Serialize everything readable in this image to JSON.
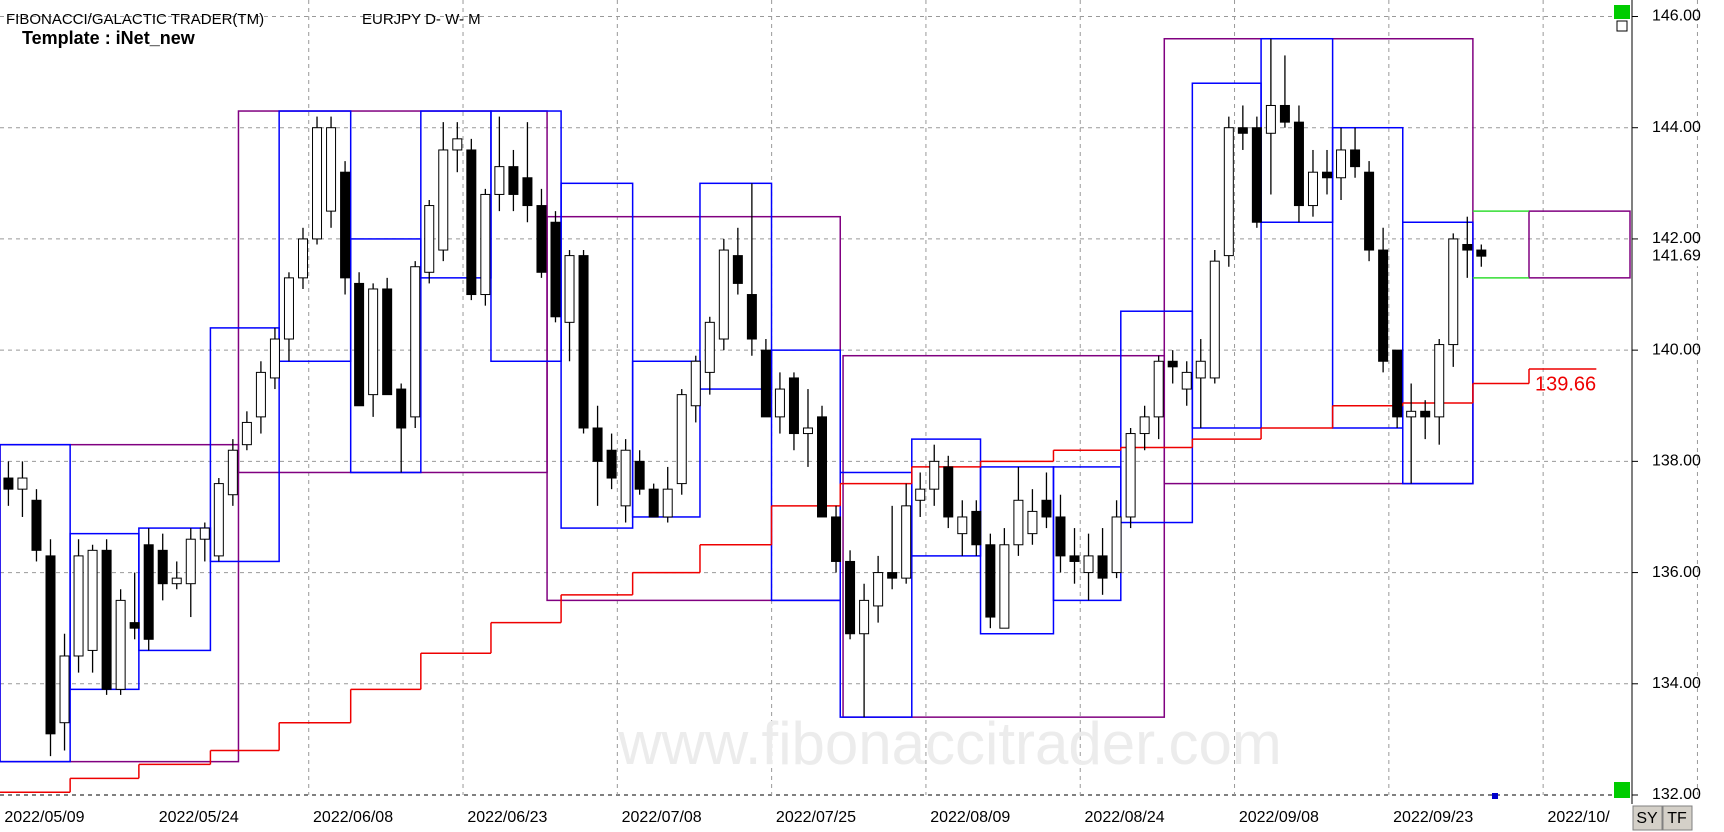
{
  "chart_data": {
    "type": "candlestick",
    "title": "FIBONACCI/GALACTIC TRADER(TM)",
    "subtitle": "EURJPY D- W- M",
    "template": "Template : iNet_new",
    "watermark": "www.fibonaccitrader.com",
    "buttons": [
      "SY",
      "TF"
    ],
    "xlim": [
      -0.6,
      115.6
    ],
    "xticks": [
      {
        "value": 0,
        "label": "2022/05/09"
      },
      {
        "value": 11,
        "label": "2022/05/24"
      },
      {
        "value": 22,
        "label": "2022/06/08"
      },
      {
        "value": 33,
        "label": "2022/06/23"
      },
      {
        "value": 44,
        "label": "2022/07/08"
      },
      {
        "value": 55,
        "label": "2022/07/25"
      },
      {
        "value": 66,
        "label": "2022/08/09"
      },
      {
        "value": 77,
        "label": "2022/08/24"
      },
      {
        "value": 88,
        "label": "2022/09/08"
      },
      {
        "value": 99,
        "label": "2022/09/23"
      },
      {
        "value": 110,
        "label": "2022/10/"
      }
    ],
    "ylim": [
      132,
      146
    ],
    "yticks": [
      {
        "value": 132,
        "label": "132.00"
      },
      {
        "value": 134,
        "label": "134.00"
      },
      {
        "value": 136,
        "label": "136.00"
      },
      {
        "value": 138,
        "label": "138.00"
      },
      {
        "value": 140,
        "label": "140.00"
      },
      {
        "value": 142,
        "label": "142.00"
      },
      {
        "value": 144,
        "label": "144.00"
      },
      {
        "value": 146,
        "label": "146.00"
      }
    ],
    "grid": true,
    "up_color": "#ffffff",
    "down_color": "#000000",
    "open": [
      137.7,
      137.5,
      137.3,
      136.3,
      133.3,
      134.5,
      134.6,
      136.4,
      133.9,
      135.1,
      136.5,
      136.4,
      135.8,
      135.8,
      136.6,
      136.3,
      137.4,
      138.3,
      138.8,
      139.5,
      140.2,
      141.3,
      142.0,
      142.5,
      143.2,
      141.2,
      139.2,
      141.1,
      139.3,
      138.8,
      141.4,
      141.8,
      143.6,
      143.6,
      141.0,
      142.8,
      143.3,
      143.1,
      142.6,
      142.3,
      140.5,
      141.7,
      138.6,
      138.2,
      137.2,
      138.0,
      137.5,
      137.0,
      137.6,
      139.0,
      139.6,
      140.2,
      141.7,
      141.0,
      140.0,
      138.8,
      139.5,
      138.5,
      138.8,
      137.0,
      136.2,
      134.9,
      135.4,
      136.0,
      135.9,
      137.3,
      137.5,
      137.9,
      136.7,
      137.1,
      136.5,
      135.0,
      136.5,
      136.7,
      137.3,
      137.0,
      136.3,
      136.0,
      136.3,
      136.0,
      137.0,
      138.5,
      138.8,
      139.8,
      139.3,
      139.5,
      139.5,
      141.7,
      144.0,
      144.0,
      143.9,
      144.4,
      144.1,
      142.6,
      143.2,
      143.1,
      143.6,
      143.2,
      141.8,
      140.0,
      138.8,
      138.9,
      138.8,
      140.1,
      141.9,
      141.8
    ],
    "high": [
      138.0,
      138.0,
      137.5,
      136.6,
      134.9,
      136.6,
      136.5,
      136.6,
      135.7,
      136.0,
      136.8,
      136.7,
      136.2,
      136.8,
      136.9,
      137.7,
      138.4,
      138.9,
      139.8,
      140.4,
      141.4,
      142.2,
      144.2,
      144.2,
      143.4,
      141.4,
      141.2,
      141.3,
      139.4,
      141.6,
      142.7,
      144.1,
      144.1,
      143.8,
      142.9,
      144.2,
      143.6,
      144.1,
      142.9,
      142.5,
      141.8,
      141.8,
      139.0,
      138.5,
      138.4,
      138.2,
      137.6,
      137.9,
      139.3,
      139.9,
      140.6,
      142.0,
      142.2,
      143.0,
      140.2,
      139.6,
      139.6,
      139.3,
      139.0,
      137.2,
      136.4,
      135.8,
      136.3,
      137.2,
      137.6,
      137.8,
      138.3,
      138.1,
      137.3,
      137.3,
      136.7,
      136.8,
      137.9,
      137.5,
      137.8,
      137.4,
      136.8,
      136.7,
      136.8,
      137.3,
      138.6,
      139.0,
      139.9,
      140.0,
      139.8,
      140.2,
      141.8,
      144.2,
      144.4,
      144.2,
      145.6,
      145.3,
      144.4,
      143.6,
      143.6,
      144.0,
      144.0,
      143.4,
      142.2,
      140.0,
      139.4,
      139.1,
      140.2,
      142.1,
      142.4,
      141.9
    ],
    "low": [
      137.2,
      137.0,
      136.2,
      132.7,
      132.8,
      134.2,
      134.2,
      133.8,
      133.8,
      134.8,
      134.6,
      135.5,
      135.7,
      135.2,
      136.2,
      136.2,
      137.2,
      138.2,
      138.5,
      139.3,
      139.8,
      141.1,
      141.9,
      142.2,
      141.0,
      139.0,
      138.8,
      139.2,
      137.8,
      138.6,
      141.2,
      141.6,
      143.2,
      140.9,
      140.8,
      142.5,
      142.5,
      142.3,
      141.3,
      140.5,
      139.8,
      138.5,
      137.2,
      137.5,
      136.9,
      137.4,
      137.0,
      136.9,
      137.4,
      138.7,
      139.2,
      140.0,
      141.0,
      139.9,
      138.8,
      138.5,
      138.2,
      137.9,
      137.0,
      136.0,
      134.8,
      133.4,
      135.1,
      135.7,
      135.8,
      137.0,
      137.2,
      136.8,
      136.3,
      136.3,
      135.0,
      135.0,
      136.3,
      136.5,
      136.8,
      136.0,
      135.8,
      135.5,
      135.6,
      135.9,
      136.8,
      138.2,
      138.4,
      139.4,
      139.0,
      138.6,
      139.4,
      141.5,
      143.6,
      142.2,
      142.8,
      144.0,
      142.3,
      142.4,
      142.8,
      142.7,
      143.1,
      141.6,
      139.6,
      138.6,
      137.6,
      138.4,
      138.3,
      139.7,
      141.3,
      141.5
    ],
    "close": [
      137.5,
      137.7,
      136.4,
      133.1,
      134.5,
      136.3,
      136.4,
      133.9,
      135.5,
      135.0,
      134.8,
      135.8,
      135.9,
      136.6,
      136.8,
      137.6,
      138.2,
      138.7,
      139.6,
      140.2,
      141.3,
      142.0,
      144.0,
      144.0,
      141.3,
      139.0,
      141.1,
      139.2,
      138.6,
      141.5,
      142.6,
      143.6,
      143.8,
      141.0,
      142.8,
      143.3,
      142.8,
      142.6,
      141.4,
      140.6,
      141.7,
      138.6,
      138.0,
      137.7,
      138.2,
      137.5,
      137.0,
      137.5,
      139.2,
      139.8,
      140.5,
      141.8,
      141.2,
      140.2,
      138.8,
      139.3,
      138.5,
      138.6,
      137.0,
      136.2,
      134.9,
      135.5,
      136.0,
      135.9,
      137.2,
      137.5,
      138.0,
      137.0,
      137.0,
      136.5,
      135.2,
      136.5,
      137.3,
      137.1,
      137.0,
      136.3,
      136.2,
      136.3,
      135.9,
      137.0,
      138.5,
      138.8,
      139.8,
      139.7,
      139.6,
      139.8,
      141.6,
      144.0,
      143.9,
      142.3,
      144.4,
      144.1,
      142.6,
      143.2,
      143.1,
      143.6,
      143.3,
      141.8,
      139.8,
      138.8,
      138.9,
      138.8,
      140.1,
      142.0,
      141.8,
      141.69
    ],
    "last_label": "141.69",
    "monthly_boxes": {
      "color": "#800080",
      "items": [
        {
          "start": -0.6,
          "end": 16.4,
          "top": 138.3,
          "bottom": 132.6
        },
        {
          "start": 16.4,
          "end": 38.4,
          "top": 144.3,
          "bottom": 137.8
        },
        {
          "start": 38.4,
          "end": 59.3,
          "top": 142.4,
          "bottom": 135.5
        },
        {
          "start": 59.5,
          "end": 82.4,
          "top": 139.9,
          "bottom": 133.4
        },
        {
          "start": 82.4,
          "end": 104.4,
          "top": 145.6,
          "bottom": 137.6
        },
        {
          "start": 108.4,
          "end": 115.6,
          "top": 142.5,
          "bottom": 141.3
        }
      ]
    },
    "weekly_boxes": {
      "color": "#0000ff",
      "items": [
        {
          "start": -0.6,
          "end": 4.4,
          "top": 138.3,
          "bottom": 132.6
        },
        {
          "start": 4.4,
          "end": 9.3,
          "top": 136.7,
          "bottom": 133.9
        },
        {
          "start": 9.3,
          "end": 14.4,
          "top": 136.8,
          "bottom": 134.6
        },
        {
          "start": 14.4,
          "end": 19.3,
          "top": 140.4,
          "bottom": 136.2
        },
        {
          "start": 19.3,
          "end": 24.4,
          "top": 144.3,
          "bottom": 139.8
        },
        {
          "start": 24.4,
          "end": 29.4,
          "top": 142.0,
          "bottom": 137.8
        },
        {
          "start": 29.4,
          "end": 34.4,
          "top": 144.3,
          "bottom": 141.3
        },
        {
          "start": 34.4,
          "end": 39.4,
          "top": 144.3,
          "bottom": 139.8
        },
        {
          "start": 39.4,
          "end": 44.5,
          "top": 143.0,
          "bottom": 136.8
        },
        {
          "start": 44.5,
          "end": 49.3,
          "top": 139.8,
          "bottom": 137.0
        },
        {
          "start": 49.3,
          "end": 54.4,
          "top": 143.0,
          "bottom": 139.3
        },
        {
          "start": 54.4,
          "end": 59.3,
          "top": 140.0,
          "bottom": 135.5
        },
        {
          "start": 59.3,
          "end": 64.4,
          "top": 137.8,
          "bottom": 133.4
        },
        {
          "start": 64.4,
          "end": 69.3,
          "top": 138.4,
          "bottom": 136.3
        },
        {
          "start": 69.3,
          "end": 74.5,
          "top": 137.9,
          "bottom": 134.9
        },
        {
          "start": 74.5,
          "end": 79.3,
          "top": 137.9,
          "bottom": 135.5
        },
        {
          "start": 79.3,
          "end": 84.4,
          "top": 140.7,
          "bottom": 136.9
        },
        {
          "start": 84.4,
          "end": 89.3,
          "top": 144.8,
          "bottom": 138.6
        },
        {
          "start": 89.3,
          "end": 94.4,
          "top": 145.6,
          "bottom": 142.3
        },
        {
          "start": 94.4,
          "end": 99.4,
          "top": 144.0,
          "bottom": 138.6
        },
        {
          "start": 99.4,
          "end": 104.4,
          "top": 142.3,
          "bottom": 137.6
        }
      ]
    },
    "projection_lines": {
      "color": "#33dd33",
      "start": 104.4,
      "end": 108.4,
      "levels": [
        142.5,
        141.3
      ]
    },
    "trail": {
      "color": "#ee0000",
      "segments": [
        {
          "start": -0.6,
          "end": 4.4,
          "value": 132.05
        },
        {
          "start": 4.4,
          "end": 9.3,
          "value": 132.3
        },
        {
          "start": 9.3,
          "end": 14.4,
          "value": 132.55
        },
        {
          "start": 14.4,
          "end": 19.3,
          "value": 132.8
        },
        {
          "start": 19.3,
          "end": 24.4,
          "value": 133.3
        },
        {
          "start": 24.4,
          "end": 29.4,
          "value": 133.9
        },
        {
          "start": 29.4,
          "end": 34.4,
          "value": 134.55
        },
        {
          "start": 34.4,
          "end": 39.4,
          "value": 135.1
        },
        {
          "start": 39.4,
          "end": 44.5,
          "value": 135.6
        },
        {
          "start": 44.5,
          "end": 49.3,
          "value": 136.0
        },
        {
          "start": 49.3,
          "end": 54.4,
          "value": 136.5
        },
        {
          "start": 54.4,
          "end": 59.3,
          "value": 137.2
        },
        {
          "start": 59.3,
          "end": 64.4,
          "value": 137.6
        },
        {
          "start": 64.4,
          "end": 69.3,
          "value": 137.9
        },
        {
          "start": 69.3,
          "end": 74.5,
          "value": 138.0
        },
        {
          "start": 74.5,
          "end": 79.3,
          "value": 138.2
        },
        {
          "start": 79.3,
          "end": 84.4,
          "value": 138.25
        },
        {
          "start": 84.4,
          "end": 89.3,
          "value": 138.4
        },
        {
          "start": 89.3,
          "end": 94.4,
          "value": 138.6
        },
        {
          "start": 94.4,
          "end": 99.4,
          "value": 139.0
        },
        {
          "start": 99.4,
          "end": 104.4,
          "value": 139.05
        },
        {
          "start": 104.4,
          "end": 108.4,
          "value": 139.4
        },
        {
          "start": 108.4,
          "end": 113.2,
          "value": 139.66,
          "label": "139.66"
        }
      ]
    }
  }
}
